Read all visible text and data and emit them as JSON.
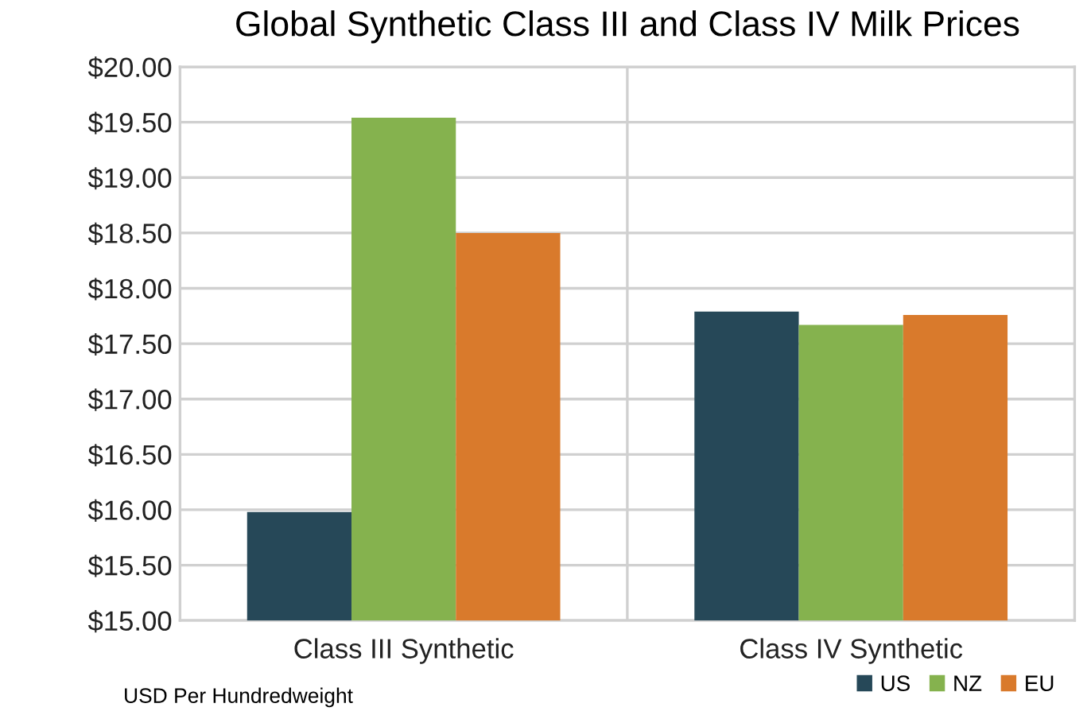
{
  "chart_data": {
    "type": "bar",
    "title": "Global Synthetic Class III and Class IV Milk Prices",
    "categories": [
      "Class III Synthetic",
      "Class IV Synthetic"
    ],
    "series": [
      {
        "name": "US",
        "color": "#264858",
        "values": [
          15.98,
          17.79
        ]
      },
      {
        "name": "NZ",
        "color": "#85b24e",
        "values": [
          19.54,
          17.67
        ]
      },
      {
        "name": "EU",
        "color": "#d97a2c",
        "values": [
          18.5,
          17.76
        ]
      }
    ],
    "ylim": [
      15,
      20
    ],
    "yticks": [
      {
        "value": 15,
        "label": "$15.00"
      },
      {
        "value": 15.5,
        "label": "$15.50"
      },
      {
        "value": 16,
        "label": "$16.00"
      },
      {
        "value": 16.5,
        "label": "$16.50"
      },
      {
        "value": 17,
        "label": "$17.00"
      },
      {
        "value": 17.5,
        "label": "$17.50"
      },
      {
        "value": 18,
        "label": "$18.00"
      },
      {
        "value": 18.5,
        "label": "$18.50"
      },
      {
        "value": 19,
        "label": "$19.00"
      },
      {
        "value": 19.5,
        "label": "$19.50"
      },
      {
        "value": 20,
        "label": "$20.00"
      }
    ],
    "grid": true,
    "legend": "bottom right",
    "annotations": [
      "USD Per Hundredweight"
    ]
  }
}
